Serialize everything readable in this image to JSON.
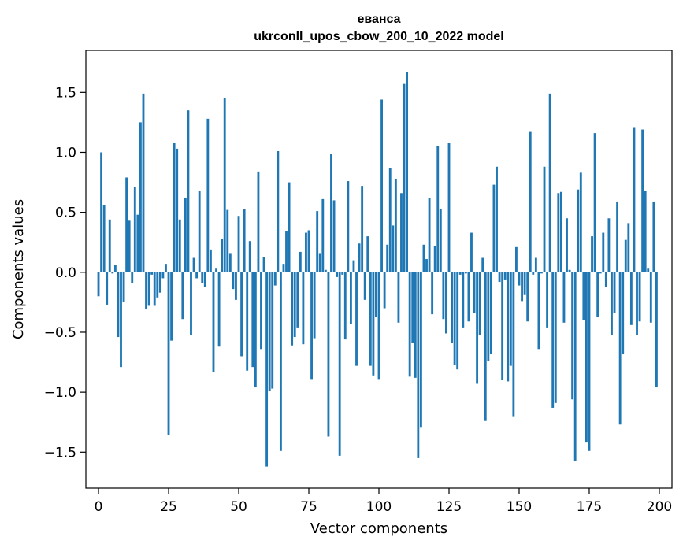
{
  "chart_data": {
    "type": "bar",
    "title": "еванса",
    "subtitle": "ukrconll_upos_cbow_200_10_2022 model",
    "xlabel": "Vector components",
    "ylabel": "Components values",
    "xlim": [
      -4.5,
      204.5
    ],
    "ylim": [
      -1.8,
      1.85
    ],
    "x_ticks": [
      0,
      25,
      50,
      75,
      100,
      125,
      150,
      175,
      200
    ],
    "y_ticks": [
      -1.5,
      -1.0,
      -0.5,
      0.0,
      0.5,
      1.0,
      1.5
    ],
    "x_tick_labels": [
      "0",
      "25",
      "50",
      "75",
      "100",
      "125",
      "150",
      "175",
      "200"
    ],
    "y_tick_labels": [
      "−1.5",
      "−1.0",
      "−0.5",
      "0.0",
      "0.5",
      "1.0",
      "1.5"
    ],
    "grid": false,
    "bar_color": "#1f77b4",
    "values": [
      -0.2,
      1.0,
      0.56,
      -0.27,
      0.44,
      -0.01,
      0.06,
      -0.54,
      -0.79,
      -0.25,
      0.79,
      0.43,
      -0.09,
      0.71,
      0.48,
      1.25,
      1.49,
      -0.31,
      -0.28,
      -0.02,
      -0.28,
      -0.21,
      -0.17,
      -0.05,
      0.07,
      -1.36,
      -0.57,
      1.08,
      1.03,
      0.44,
      -0.39,
      0.62,
      1.35,
      -0.52,
      0.12,
      -0.05,
      0.68,
      -0.09,
      -0.12,
      1.28,
      0.19,
      -0.83,
      0.03,
      -0.62,
      0.28,
      1.45,
      0.52,
      0.16,
      -0.14,
      -0.23,
      0.47,
      -0.7,
      0.53,
      -0.82,
      0.26,
      -0.79,
      -0.96,
      0.84,
      -0.64,
      0.13,
      -1.62,
      -0.99,
      -0.97,
      -0.11,
      1.01,
      -1.49,
      0.07,
      0.34,
      0.75,
      -0.61,
      -0.54,
      -0.46,
      0.17,
      -0.6,
      0.33,
      0.35,
      -0.89,
      -0.55,
      0.51,
      0.16,
      0.61,
      0.02,
      -1.37,
      0.99,
      0.6,
      -0.04,
      -1.53,
      -0.02,
      -0.56,
      0.76,
      -0.43,
      0.1,
      -0.78,
      0.24,
      0.72,
      -0.23,
      0.3,
      -0.78,
      -0.86,
      -0.37,
      -0.89,
      1.44,
      -0.3,
      0.23,
      0.87,
      0.39,
      0.78,
      -0.42,
      0.66,
      1.57,
      1.67,
      -0.87,
      -0.59,
      -0.88,
      -1.55,
      -1.29,
      0.23,
      0.11,
      0.62,
      -0.35,
      0.22,
      1.05,
      0.53,
      -0.39,
      -0.51,
      1.08,
      -0.59,
      -0.77,
      -0.81,
      -0.02,
      -0.46,
      -0.01,
      -0.41,
      0.33,
      -0.34,
      -0.93,
      -0.52,
      0.12,
      -1.24,
      -0.74,
      -0.68,
      0.73,
      0.88,
      -0.08,
      -0.9,
      -0.06,
      -0.91,
      -0.78,
      -1.2,
      0.21,
      -0.11,
      -0.24,
      -0.19,
      -0.41,
      1.17,
      -0.02,
      0.12,
      -0.64,
      -0.01,
      0.88,
      -0.46,
      1.49,
      -1.13,
      -1.09,
      0.66,
      0.67,
      -0.42,
      0.45,
      0.02,
      -1.06,
      -1.57,
      0.69,
      0.83,
      -0.4,
      -1.42,
      -1.49,
      0.3,
      1.16,
      -0.37,
      -0.01,
      0.33,
      -0.12,
      0.45,
      -0.52,
      -0.34,
      0.59,
      -1.27,
      -0.68,
      0.27,
      0.41,
      -0.44,
      1.21,
      -0.52,
      -0.41,
      1.19,
      0.68,
      0.03,
      -0.42,
      0.59,
      -0.96
    ]
  }
}
